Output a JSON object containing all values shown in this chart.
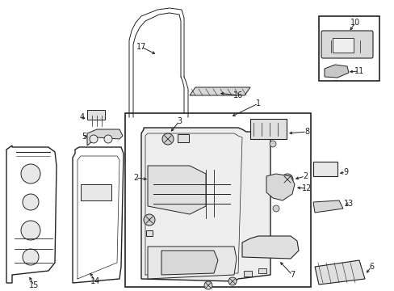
{
  "bg_color": "#ffffff",
  "line_color": "#222222",
  "fs": 7.0,
  "figw": 4.89,
  "figh": 3.6,
  "dpi": 100
}
